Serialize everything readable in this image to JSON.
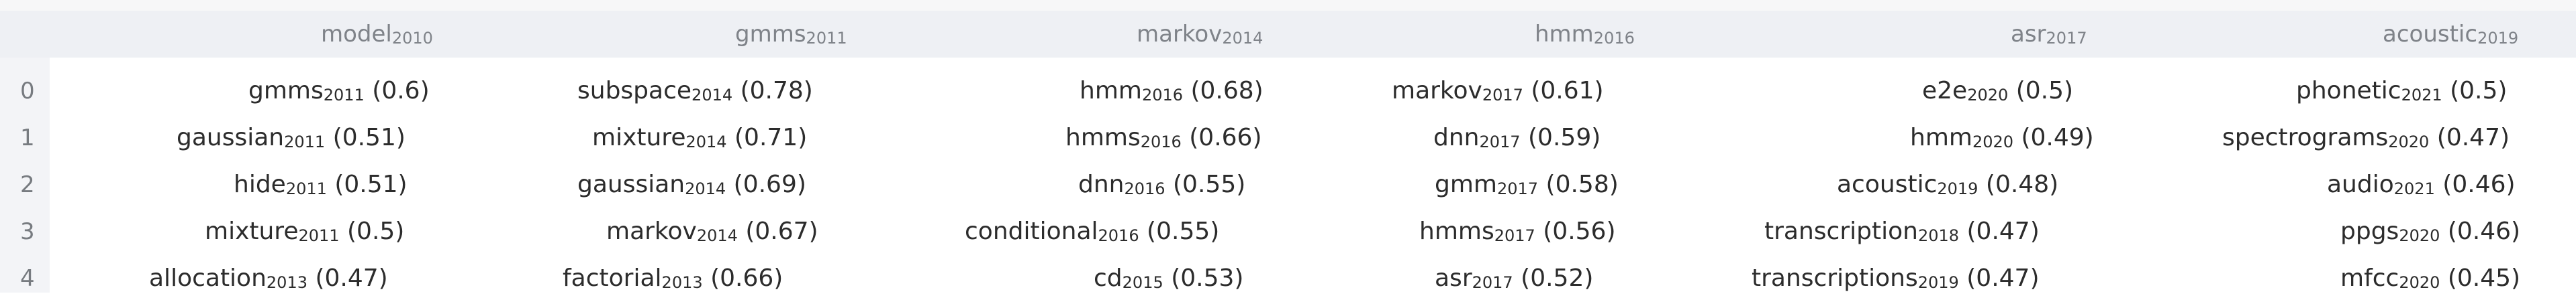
{
  "table": {
    "columns": [
      {
        "word": "model",
        "year": "2010"
      },
      {
        "word": "gmms",
        "year": "2011"
      },
      {
        "word": "markov",
        "year": "2014"
      },
      {
        "word": "hmm",
        "year": "2016"
      },
      {
        "word": "asr",
        "year": "2017"
      },
      {
        "word": "acoustic",
        "year": "2019"
      }
    ],
    "rows": [
      {
        "index": "0",
        "cells": [
          {
            "word": "gmms",
            "year": "2011",
            "score": "(0.6)"
          },
          {
            "word": "subspace",
            "year": "2014",
            "score": "(0.78)"
          },
          {
            "word": "hmm",
            "year": "2016",
            "score": "(0.68)"
          },
          {
            "word": "markov",
            "year": "2017",
            "score": "(0.61)"
          },
          {
            "word": "e2e",
            "year": "2020",
            "score": "(0.5)"
          },
          {
            "word": "phonetic",
            "year": "2021",
            "score": "(0.5)"
          }
        ]
      },
      {
        "index": "1",
        "cells": [
          {
            "word": "gaussian",
            "year": "2011",
            "score": "(0.51)"
          },
          {
            "word": "mixture",
            "year": "2014",
            "score": "(0.71)"
          },
          {
            "word": "hmms",
            "year": "2016",
            "score": "(0.66)"
          },
          {
            "word": "dnn",
            "year": "2017",
            "score": "(0.59)"
          },
          {
            "word": "hmm",
            "year": "2020",
            "score": "(0.49)"
          },
          {
            "word": "spectrograms",
            "year": "2020",
            "score": "(0.47)"
          }
        ]
      },
      {
        "index": "2",
        "cells": [
          {
            "word": "hide",
            "year": "2011",
            "score": "(0.51)"
          },
          {
            "word": "gaussian",
            "year": "2014",
            "score": "(0.69)"
          },
          {
            "word": "dnn",
            "year": "2016",
            "score": "(0.55)"
          },
          {
            "word": "gmm",
            "year": "2017",
            "score": "(0.58)"
          },
          {
            "word": "acoustic",
            "year": "2019",
            "score": "(0.48)"
          },
          {
            "word": "audio",
            "year": "2021",
            "score": "(0.46)"
          }
        ]
      },
      {
        "index": "3",
        "cells": [
          {
            "word": "mixture",
            "year": "2011",
            "score": "(0.5)"
          },
          {
            "word": "markov",
            "year": "2014",
            "score": "(0.67)"
          },
          {
            "word": "conditional",
            "year": "2016",
            "score": "(0.55)"
          },
          {
            "word": "hmms",
            "year": "2017",
            "score": "(0.56)"
          },
          {
            "word": "transcription",
            "year": "2018",
            "score": "(0.47)"
          },
          {
            "word": "ppgs",
            "year": "2020",
            "score": "(0.46)"
          }
        ]
      },
      {
        "index": "4",
        "cells": [
          {
            "word": "allocation",
            "year": "2013",
            "score": "(0.47)"
          },
          {
            "word": "factorial",
            "year": "2013",
            "score": "(0.66)"
          },
          {
            "word": "cd",
            "year": "2015",
            "score": "(0.53)"
          },
          {
            "word": "asr",
            "year": "2017",
            "score": "(0.52)"
          },
          {
            "word": "transcriptions",
            "year": "2019",
            "score": "(0.47)"
          },
          {
            "word": "mfcc",
            "year": "2020",
            "score": "(0.45)"
          }
        ]
      }
    ]
  }
}
